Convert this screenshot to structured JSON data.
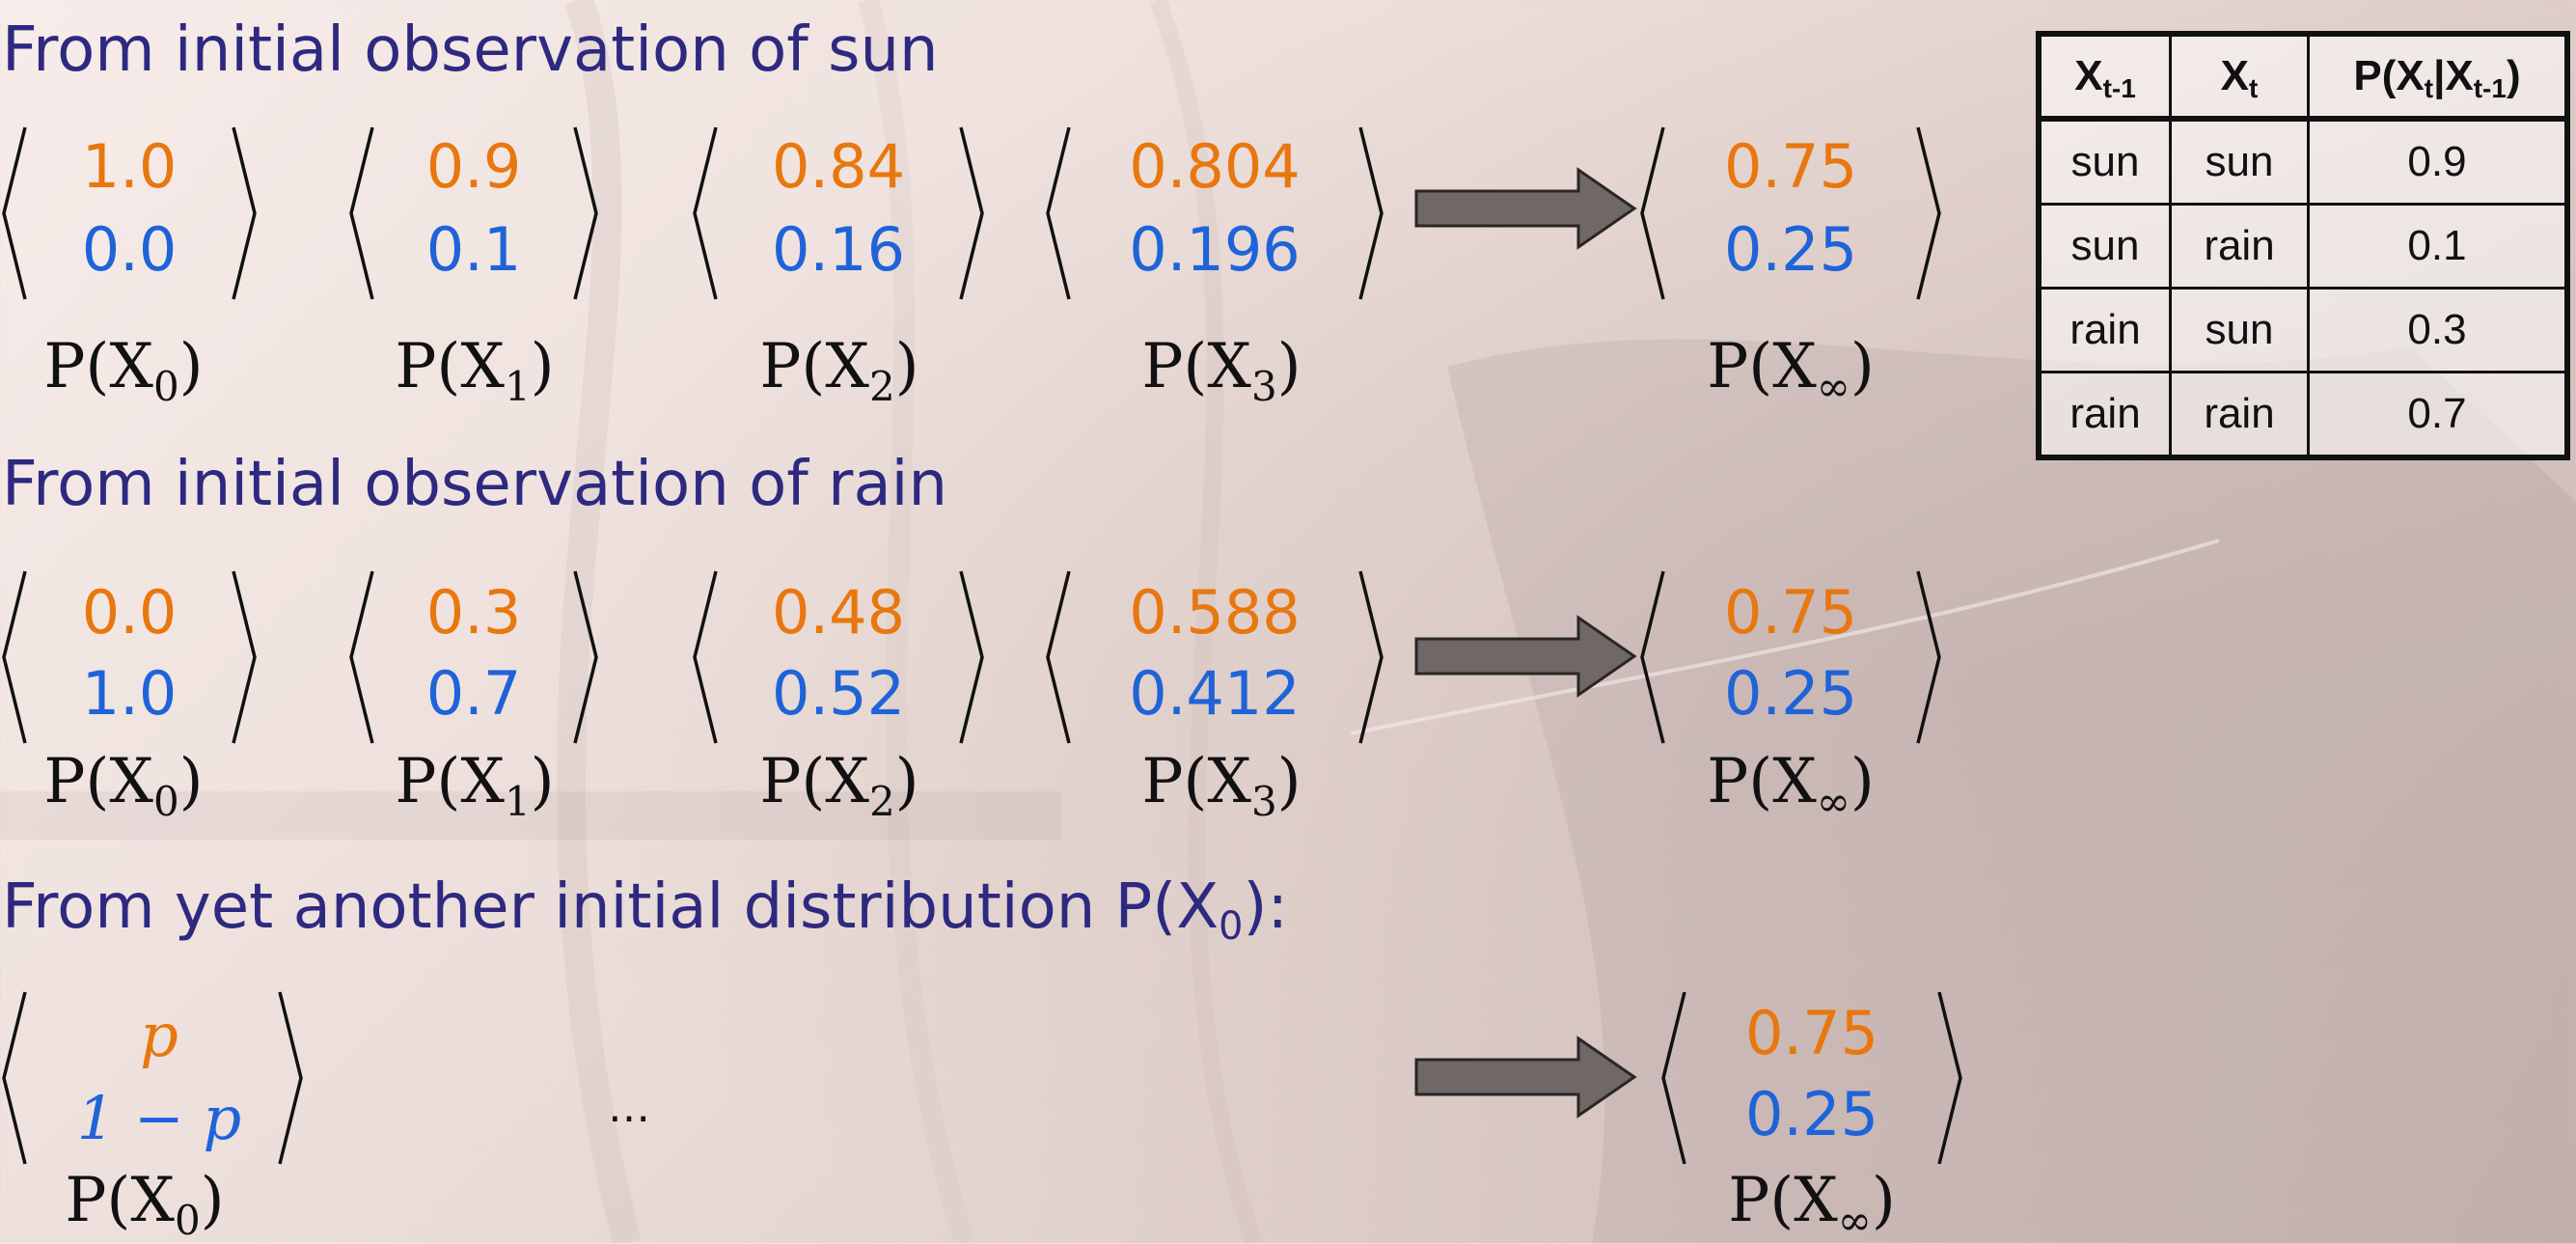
{
  "sections": [
    {
      "heading": "From initial observation of sun",
      "steps": [
        {
          "sun": "1.0",
          "rain": "0.0",
          "label_prefix": "P(X",
          "label_sub": "0",
          "label_suffix": ")"
        },
        {
          "sun": "0.9",
          "rain": "0.1",
          "label_prefix": "P(X",
          "label_sub": "1",
          "label_suffix": ")"
        },
        {
          "sun": "0.84",
          "rain": "0.16",
          "label_prefix": "P(X",
          "label_sub": "2",
          "label_suffix": ")"
        },
        {
          "sun": "0.804",
          "rain": "0.196",
          "label_prefix": "P(X",
          "label_sub": "3",
          "label_suffix": ")"
        }
      ],
      "limit": {
        "sun": "0.75",
        "rain": "0.25",
        "label_prefix": "P(X",
        "label_sub": "∞",
        "label_suffix": ")"
      }
    },
    {
      "heading": "From initial observation of rain",
      "steps": [
        {
          "sun": "0.0",
          "rain": "1.0",
          "label_prefix": "P(X",
          "label_sub": "0",
          "label_suffix": ")"
        },
        {
          "sun": "0.3",
          "rain": "0.7",
          "label_prefix": "P(X",
          "label_sub": "1",
          "label_suffix": ")"
        },
        {
          "sun": "0.48",
          "rain": "0.52",
          "label_prefix": "P(X",
          "label_sub": "2",
          "label_suffix": ")"
        },
        {
          "sun": "0.588",
          "rain": "0.412",
          "label_prefix": "P(X",
          "label_sub": "3",
          "label_suffix": ")"
        }
      ],
      "limit": {
        "sun": "0.75",
        "rain": "0.25",
        "label_prefix": "P(X",
        "label_sub": "∞",
        "label_suffix": ")"
      }
    },
    {
      "heading_prefix": "From yet another initial distribution P(X",
      "heading_sub": "0",
      "heading_suffix": "):",
      "steps": [
        {
          "sun": "p",
          "rain": "1 − p",
          "label_prefix": "P(X",
          "label_sub": "0",
          "label_suffix": ")"
        }
      ],
      "ellipsis": "…",
      "limit": {
        "sun": "0.75",
        "rain": "0.25",
        "label_prefix": "P(X",
        "label_sub": "∞",
        "label_suffix": ")"
      }
    }
  ],
  "transition_table": {
    "headers": [
      {
        "main": "X",
        "sub": "t-1",
        "suffix": ""
      },
      {
        "main": "X",
        "sub": "t",
        "suffix": ""
      },
      {
        "main": "P(X",
        "sub": "t",
        "mid": "|X",
        "sub2": "t-1",
        "suffix": ")"
      }
    ],
    "rows": [
      [
        "sun",
        "sun",
        "0.9"
      ],
      [
        "sun",
        "rain",
        "0.1"
      ],
      [
        "rain",
        "sun",
        "0.3"
      ],
      [
        "rain",
        "rain",
        "0.7"
      ]
    ]
  },
  "colors": {
    "heading": "#2e2980",
    "sun_value": "#e8770f",
    "rain_value": "#1f63d9",
    "arrow_fill": "#6f6867",
    "arrow_stroke": "#2a2626"
  },
  "icons": {
    "arrow": "right-block-arrow-icon"
  }
}
